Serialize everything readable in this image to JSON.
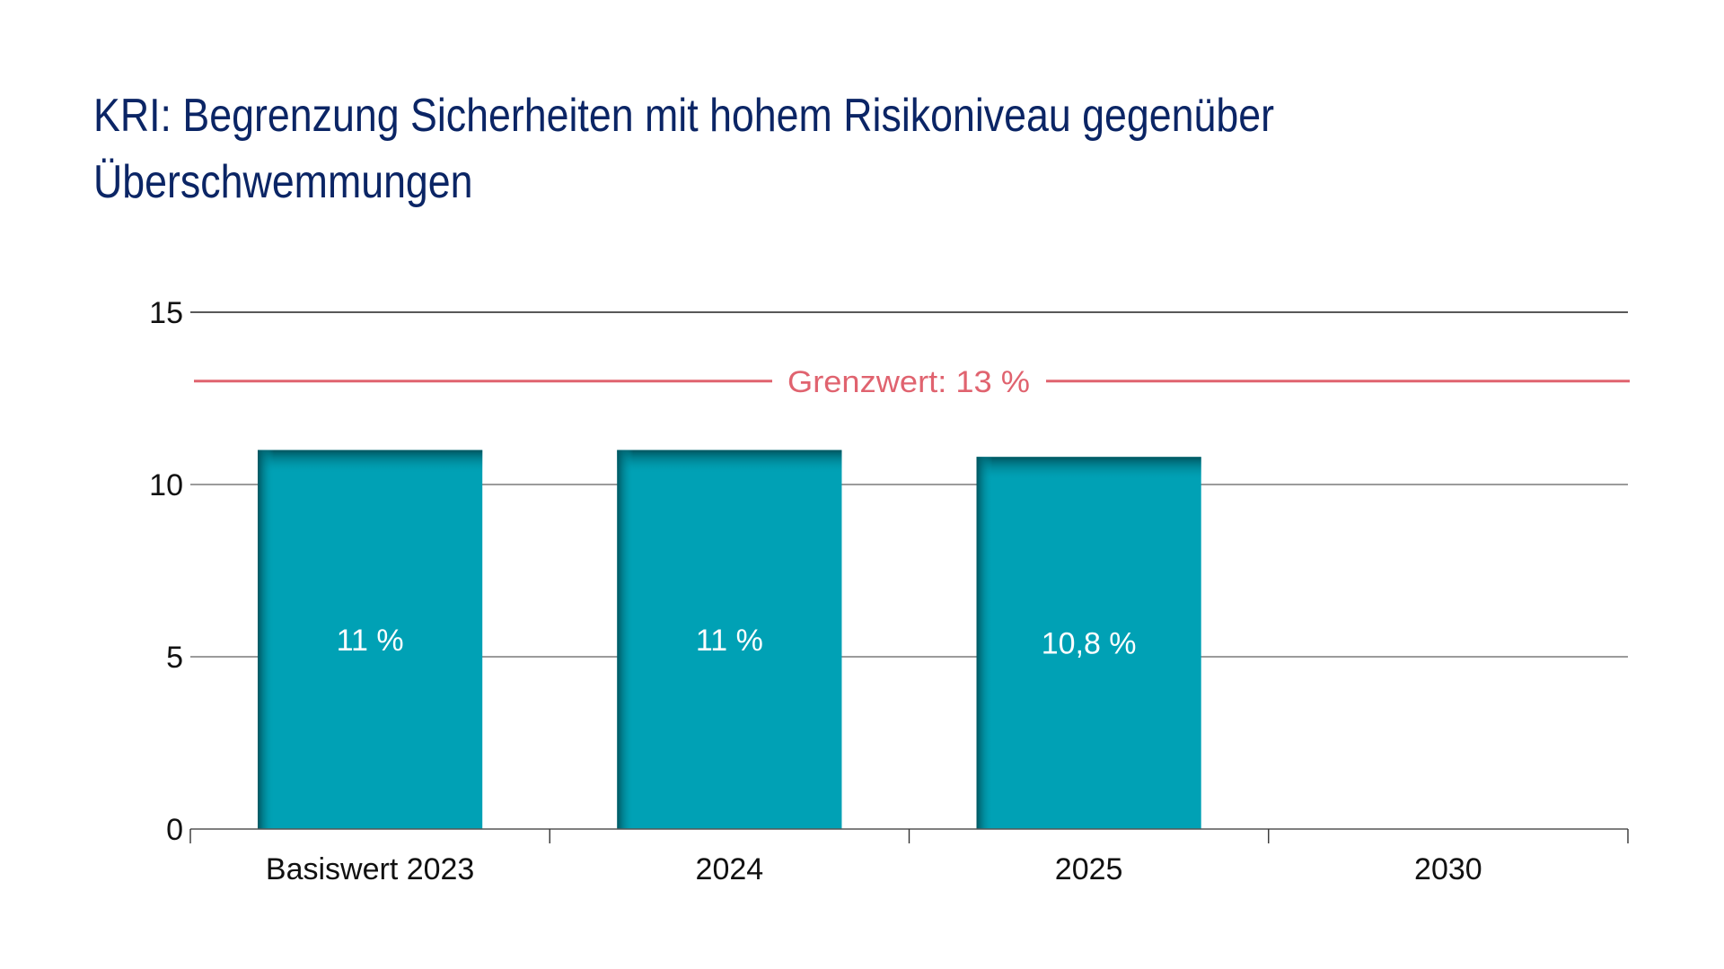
{
  "title": {
    "line1": "KRI: Begrenzung Sicherheiten mit hohem Risikoniveau gegenüber",
    "line2": "Überschwemmungen"
  },
  "chart_data": {
    "type": "bar",
    "title": "KRI: Begrenzung Sicherheiten mit hohem Risikoniveau gegenüber Überschwemmungen",
    "xlabel": "",
    "ylabel": "",
    "categories": [
      "Basiswert 2023",
      "2024",
      "2025",
      "2030"
    ],
    "values": [
      11,
      11,
      10.8,
      null
    ],
    "data_labels": [
      "11 %",
      "11 %",
      "10,8 %",
      ""
    ],
    "ylim": [
      0,
      15
    ],
    "yticks": [
      0,
      5,
      10,
      15
    ],
    "ytick_labels": [
      "0",
      "5",
      "10",
      "15"
    ],
    "grid": true,
    "legend": "none",
    "reference_line": {
      "value": 13,
      "label": "Grenzwert: 13 %",
      "color": "#e0636f"
    },
    "colors": {
      "bar": "#00a1b5",
      "bar_shade": "#00545e",
      "gridline": "#7a7a7a",
      "axis": "#555555"
    }
  }
}
